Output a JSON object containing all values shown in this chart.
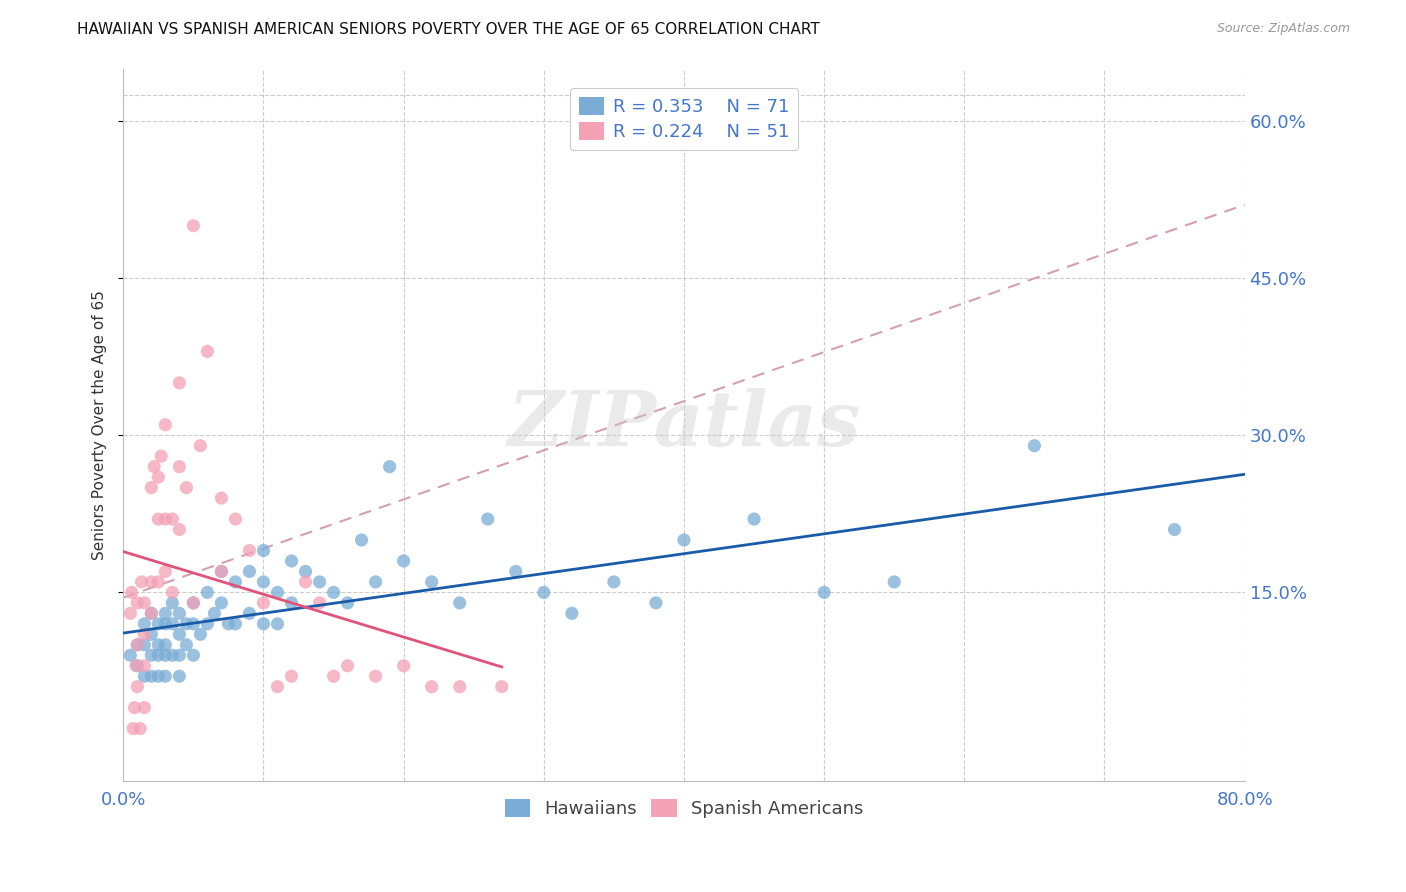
{
  "title": "HAWAIIAN VS SPANISH AMERICAN SENIORS POVERTY OVER THE AGE OF 65 CORRELATION CHART",
  "source": "Source: ZipAtlas.com",
  "ylabel": "Seniors Poverty Over the Age of 65",
  "ytick_labels": [
    "60.0%",
    "45.0%",
    "30.0%",
    "15.0%"
  ],
  "ytick_values": [
    0.6,
    0.45,
    0.3,
    0.15
  ],
  "xlim": [
    0.0,
    0.8
  ],
  "ylim": [
    -0.03,
    0.65
  ],
  "hawaiian_color": "#7aacd6",
  "spanish_color": "#f4a0b5",
  "hawaiian_line_color": "#1a5ba8",
  "spanish_line_color": "#e0537a",
  "spanish_dash_color": "#d4a0b0",
  "legend_label1": "R = 0.353    N = 71",
  "legend_label2": "R = 0.224    N = 51",
  "watermark": "ZIPatlas",
  "title_fontsize": 11,
  "source_fontsize": 9,
  "axis_color": "#4477cc",
  "grid_color": "#cccccc",
  "hawaiian_x": [
    0.005,
    0.01,
    0.01,
    0.015,
    0.015,
    0.015,
    0.02,
    0.02,
    0.02,
    0.02,
    0.025,
    0.025,
    0.025,
    0.025,
    0.03,
    0.03,
    0.03,
    0.03,
    0.03,
    0.035,
    0.035,
    0.035,
    0.04,
    0.04,
    0.04,
    0.04,
    0.045,
    0.045,
    0.05,
    0.05,
    0.05,
    0.055,
    0.06,
    0.06,
    0.065,
    0.07,
    0.07,
    0.075,
    0.08,
    0.08,
    0.09,
    0.09,
    0.1,
    0.1,
    0.1,
    0.11,
    0.11,
    0.12,
    0.12,
    0.13,
    0.14,
    0.15,
    0.16,
    0.17,
    0.18,
    0.19,
    0.2,
    0.22,
    0.24,
    0.26,
    0.28,
    0.3,
    0.32,
    0.35,
    0.38,
    0.4,
    0.45,
    0.5,
    0.55,
    0.65,
    0.75
  ],
  "hawaiian_y": [
    0.09,
    0.1,
    0.08,
    0.12,
    0.1,
    0.07,
    0.13,
    0.11,
    0.09,
    0.07,
    0.12,
    0.1,
    0.09,
    0.07,
    0.13,
    0.12,
    0.1,
    0.09,
    0.07,
    0.14,
    0.12,
    0.09,
    0.13,
    0.11,
    0.09,
    0.07,
    0.12,
    0.1,
    0.14,
    0.12,
    0.09,
    0.11,
    0.15,
    0.12,
    0.13,
    0.17,
    0.14,
    0.12,
    0.16,
    0.12,
    0.17,
    0.13,
    0.19,
    0.16,
    0.12,
    0.15,
    0.12,
    0.18,
    0.14,
    0.17,
    0.16,
    0.15,
    0.14,
    0.2,
    0.16,
    0.27,
    0.18,
    0.16,
    0.14,
    0.22,
    0.17,
    0.15,
    0.13,
    0.16,
    0.14,
    0.2,
    0.22,
    0.15,
    0.16,
    0.29,
    0.21
  ],
  "spanish_x": [
    0.005,
    0.006,
    0.007,
    0.008,
    0.009,
    0.01,
    0.01,
    0.01,
    0.012,
    0.013,
    0.015,
    0.015,
    0.015,
    0.015,
    0.02,
    0.02,
    0.02,
    0.022,
    0.025,
    0.025,
    0.025,
    0.027,
    0.03,
    0.03,
    0.03,
    0.035,
    0.035,
    0.04,
    0.04,
    0.04,
    0.045,
    0.05,
    0.05,
    0.055,
    0.06,
    0.07,
    0.07,
    0.08,
    0.09,
    0.1,
    0.11,
    0.12,
    0.13,
    0.14,
    0.15,
    0.16,
    0.18,
    0.2,
    0.22,
    0.24,
    0.27
  ],
  "spanish_y": [
    0.13,
    0.15,
    0.02,
    0.04,
    0.08,
    0.14,
    0.1,
    0.06,
    0.02,
    0.16,
    0.14,
    0.11,
    0.08,
    0.04,
    0.16,
    0.25,
    0.13,
    0.27,
    0.22,
    0.16,
    0.26,
    0.28,
    0.31,
    0.22,
    0.17,
    0.22,
    0.15,
    0.35,
    0.27,
    0.21,
    0.25,
    0.5,
    0.14,
    0.29,
    0.38,
    0.24,
    0.17,
    0.22,
    0.19,
    0.14,
    0.06,
    0.07,
    0.16,
    0.14,
    0.07,
    0.08,
    0.07,
    0.08,
    0.06,
    0.06,
    0.06
  ]
}
